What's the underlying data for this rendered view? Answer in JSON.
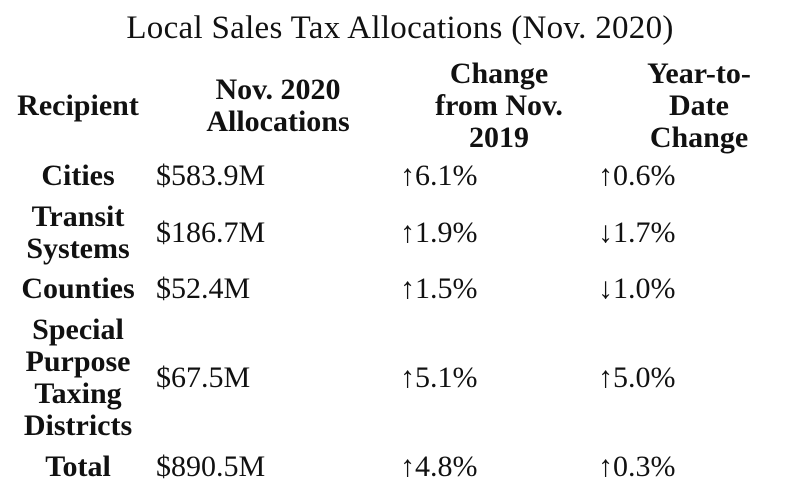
{
  "title": "Local Sales Tax Allocations (Nov. 2020)",
  "columns": {
    "recipient": "Recipient",
    "allocations": "Nov. 2020\nAllocations",
    "change": "Change\nfrom Nov.\n2019",
    "ytd": "Year-to-\nDate\nChange"
  },
  "rows": [
    {
      "recipient": "Cities",
      "allocations": "$583.9M",
      "change": "↑6.1%",
      "ytd": "↑0.6%"
    },
    {
      "recipient": "Transit\nSystems",
      "allocations": "$186.7M",
      "change": "↑1.9%",
      "ytd": "↓1.7%"
    },
    {
      "recipient": "Counties",
      "allocations": "$52.4M",
      "change": "↑1.5%",
      "ytd": "↓1.0%"
    },
    {
      "recipient": "Special\nPurpose\nTaxing\nDistricts",
      "allocations": "$67.5M",
      "change": "↑5.1%",
      "ytd": "↑5.0%"
    },
    {
      "recipient": "Total",
      "allocations": "$890.5M",
      "change": "↑4.8%",
      "ytd": "↑0.3%"
    }
  ]
}
